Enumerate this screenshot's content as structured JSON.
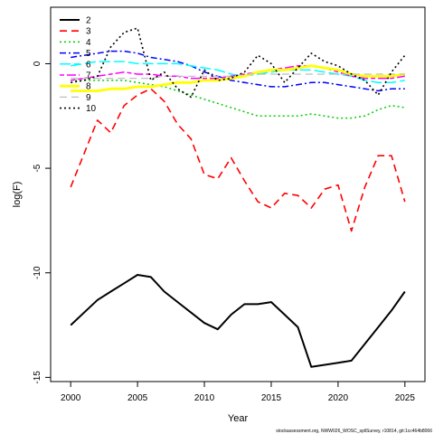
{
  "chart_data": {
    "type": "line",
    "xlabel": "Year",
    "ylabel": "log(F)",
    "xlim": [
      1998.5,
      2026.5
    ],
    "ylim": [
      -15.2,
      2.7
    ],
    "xticks": [
      2000,
      2005,
      2010,
      2015,
      2020,
      2025
    ],
    "yticks": [
      -15,
      -10,
      -5,
      0
    ],
    "x": [
      2000,
      2001,
      2002,
      2003,
      2004,
      2005,
      2006,
      2007,
      2008,
      2009,
      2010,
      2011,
      2012,
      2013,
      2014,
      2015,
      2016,
      2017,
      2018,
      2019,
      2020,
      2021,
      2022,
      2023,
      2024,
      2025
    ],
    "legend_position": "top-left",
    "grid": false,
    "series": [
      {
        "name": "2",
        "color": "#000000",
        "dash": "solid",
        "width": 2,
        "values": [
          -12.5,
          -11.9,
          -11.3,
          -10.9,
          -10.5,
          -10.1,
          -10.2,
          -10.9,
          -11.4,
          -11.9,
          -12.4,
          -12.7,
          -12.0,
          -11.5,
          -11.5,
          -11.4,
          -12.0,
          -12.6,
          -14.5,
          -14.4,
          -14.3,
          -14.2,
          -13.4,
          -12.6,
          -11.8,
          -10.9
        ]
      },
      {
        "name": "3",
        "color": "#ff0000",
        "dash": "long",
        "width": 1.6,
        "values": [
          -5.9,
          -4.3,
          -2.7,
          -3.3,
          -2.0,
          -1.5,
          -1.2,
          -1.8,
          -2.9,
          -3.6,
          -5.3,
          -5.5,
          -4.5,
          -5.6,
          -6.6,
          -6.9,
          -6.2,
          -6.3,
          -6.9,
          -6.0,
          -5.8,
          -8.0,
          -5.9,
          -4.4,
          -4.4,
          -6.6
        ]
      },
      {
        "name": "4",
        "color": "#00cd00",
        "dash": "dotted",
        "width": 1.5,
        "values": [
          -0.8,
          -0.8,
          -0.8,
          -0.8,
          -0.8,
          -0.9,
          -1.0,
          -1.1,
          -1.3,
          -1.5,
          -1.7,
          -1.9,
          -2.1,
          -2.3,
          -2.5,
          -2.5,
          -2.5,
          -2.5,
          -2.4,
          -2.5,
          -2.6,
          -2.6,
          -2.5,
          -2.2,
          -2.0,
          -2.1
        ]
      },
      {
        "name": "5",
        "color": "#0000ff",
        "dash": "dashdot",
        "width": 1.5,
        "values": [
          0.3,
          0.4,
          0.5,
          0.6,
          0.6,
          0.5,
          0.3,
          0.2,
          0.1,
          -0.1,
          -0.4,
          -0.6,
          -0.8,
          -0.9,
          -1.0,
          -1.1,
          -1.1,
          -1.0,
          -0.9,
          -0.9,
          -1.0,
          -1.1,
          -1.2,
          -1.3,
          -1.2,
          -1.2
        ]
      },
      {
        "name": "6",
        "color": "#00ffff",
        "dash": "longdash",
        "width": 1.5,
        "values": [
          -0.1,
          0.0,
          0.1,
          0.1,
          0.1,
          0.0,
          0.0,
          0.0,
          0.0,
          -0.1,
          -0.2,
          -0.3,
          -0.5,
          -0.6,
          -0.5,
          -0.4,
          -0.3,
          -0.3,
          -0.3,
          -0.4,
          -0.5,
          -0.6,
          -0.8,
          -0.9,
          -0.9,
          -0.8
        ]
      },
      {
        "name": "7",
        "color": "#ff00ff",
        "dash": "twodash",
        "width": 1.5,
        "values": [
          -0.8,
          -0.7,
          -0.6,
          -0.5,
          -0.4,
          -0.5,
          -0.5,
          -0.6,
          -0.6,
          -0.7,
          -0.7,
          -0.7,
          -0.6,
          -0.5,
          -0.4,
          -0.3,
          -0.2,
          -0.1,
          -0.1,
          -0.2,
          -0.4,
          -0.6,
          -0.7,
          -0.7,
          -0.7,
          -0.6
        ]
      },
      {
        "name": "8",
        "color": "#ffff00",
        "dash": "solid",
        "width": 2.8,
        "values": [
          -1.3,
          -1.3,
          -1.3,
          -1.2,
          -1.2,
          -1.1,
          -1.1,
          -1.0,
          -0.9,
          -0.9,
          -0.8,
          -0.8,
          -0.7,
          -0.6,
          -0.4,
          -0.3,
          -0.3,
          -0.2,
          -0.1,
          -0.2,
          -0.3,
          -0.5,
          -0.6,
          -0.6,
          -0.6,
          -0.5
        ]
      },
      {
        "name": "9",
        "color": "#bebebe",
        "dash": "long",
        "width": 1.2,
        "values": [
          -0.7,
          -0.7,
          -0.7,
          -0.7,
          -0.7,
          -0.7,
          -0.7,
          -0.6,
          -0.6,
          -0.6,
          -0.6,
          -0.6,
          -0.6,
          -0.5,
          -0.5,
          -0.5,
          -0.5,
          -0.5,
          -0.5,
          -0.5,
          -0.5,
          -0.5,
          -0.5,
          -0.5,
          -0.5,
          -0.5
        ]
      },
      {
        "name": "10",
        "color": "#000000",
        "dash": "dotted",
        "width": 1.6,
        "values": [
          -0.9,
          -0.8,
          -0.6,
          0.8,
          1.5,
          1.7,
          -0.8,
          -0.4,
          -1.2,
          -1.6,
          -0.3,
          -0.8,
          -0.7,
          -0.4,
          0.4,
          0.0,
          -0.9,
          -0.2,
          0.5,
          0.1,
          -0.1,
          -0.5,
          -0.8,
          -1.5,
          -0.4,
          0.4
        ]
      }
    ]
  },
  "footer": "stockassessment.org, NWW026_WOSC_spliSurvey, r10814, git:1cc464b8066"
}
